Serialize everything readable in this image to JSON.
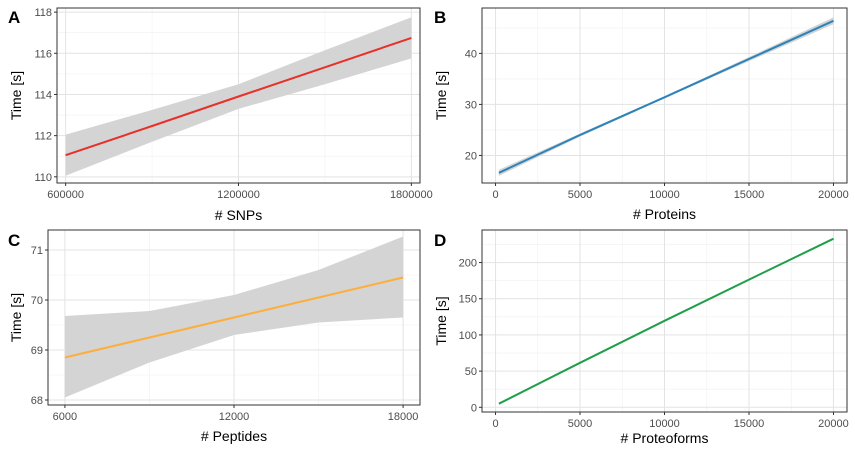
{
  "chart_data": [
    {
      "type": "line",
      "tag": "A",
      "xlabel": "# SNPs",
      "ylabel": "Time [s]",
      "xlim": [
        570000,
        1830000
      ],
      "ylim": [
        109.7,
        118.2
      ],
      "xticks": [
        600000,
        1200000,
        1800000
      ],
      "xtick_labels": [
        "600000",
        "1200000",
        "1800000"
      ],
      "yticks": [
        110,
        112,
        114,
        116,
        118
      ],
      "ytick_labels": [
        "110",
        "112",
        "114",
        "116",
        "118"
      ],
      "grid": true,
      "line_color": "#e8302a",
      "band_color": "#d4d4d4",
      "series": [
        {
          "x": [
            600000,
            900000,
            1200000,
            1500000,
            1800000
          ],
          "y": [
            111.05,
            112.47,
            113.9,
            115.32,
            116.75
          ],
          "lower": [
            110.05,
            111.7,
            113.3,
            114.5,
            115.75
          ],
          "upper": [
            112.05,
            113.25,
            114.5,
            116.15,
            117.75
          ]
        }
      ]
    },
    {
      "type": "line",
      "tag": "B",
      "xlabel": "# Proteins",
      "ylabel": "Time [s]",
      "xlim": [
        -800,
        20800
      ],
      "ylim": [
        14.6,
        48.9
      ],
      "xticks": [
        0,
        5000,
        10000,
        15000,
        20000
      ],
      "xtick_labels": [
        "0",
        "5000",
        "10000",
        "15000",
        "20000"
      ],
      "yticks": [
        20,
        30,
        40
      ],
      "ytick_labels": [
        "20",
        "30",
        "40"
      ],
      "grid": true,
      "line_color": "#2b83ba",
      "band_color": "#d4d4d4",
      "series": [
        {
          "x": [
            200,
            5000,
            10000,
            15000,
            20000
          ],
          "y": [
            16.6,
            24.0,
            31.4,
            38.9,
            46.4
          ],
          "lower": [
            16.0,
            23.7,
            31.2,
            38.5,
            45.7
          ],
          "upper": [
            17.2,
            24.3,
            31.6,
            39.3,
            47.1
          ]
        }
      ]
    },
    {
      "type": "line",
      "tag": "C",
      "xlabel": "# Peptides",
      "ylabel": "Time [s]",
      "xlim": [
        5400,
        18600
      ],
      "ylim": [
        67.9,
        71.4
      ],
      "xticks": [
        6000,
        12000,
        18000
      ],
      "xtick_labels": [
        "6000",
        "12000",
        "18000"
      ],
      "yticks": [
        68,
        69,
        70,
        71
      ],
      "ytick_labels": [
        "68",
        "69",
        "70",
        "71"
      ],
      "grid": true,
      "line_color": "#fdae3a",
      "band_color": "#d4d4d4",
      "series": [
        {
          "x": [
            6000,
            9000,
            12000,
            15000,
            18000
          ],
          "y": [
            68.85,
            69.25,
            69.65,
            70.05,
            70.45
          ],
          "lower": [
            68.05,
            68.75,
            69.3,
            69.55,
            69.65
          ],
          "upper": [
            69.68,
            69.78,
            70.1,
            70.6,
            71.27
          ]
        }
      ]
    },
    {
      "type": "line",
      "tag": "D",
      "xlabel": "# Proteoforms",
      "ylabel": "Time [s]",
      "xlim": [
        -800,
        20800
      ],
      "ylim": [
        -6.5,
        245
      ],
      "xticks": [
        0,
        5000,
        10000,
        15000,
        20000
      ],
      "xtick_labels": [
        "0",
        "5000",
        "10000",
        "15000",
        "20000"
      ],
      "yticks": [
        0,
        50,
        100,
        150,
        200
      ],
      "ytick_labels": [
        "0",
        "50",
        "100",
        "150",
        "200"
      ],
      "grid": true,
      "line_color": "#1f9e4a",
      "band_color": "#d4d4d4",
      "series": [
        {
          "x": [
            200,
            5000,
            10000,
            15000,
            20000
          ],
          "y": [
            5.0,
            61.5,
            119.5,
            176.5,
            233.0
          ],
          "lower": [
            4.0,
            60.8,
            118.9,
            175.8,
            232.0
          ],
          "upper": [
            6.0,
            62.2,
            120.1,
            177.2,
            234.0
          ]
        }
      ]
    }
  ]
}
